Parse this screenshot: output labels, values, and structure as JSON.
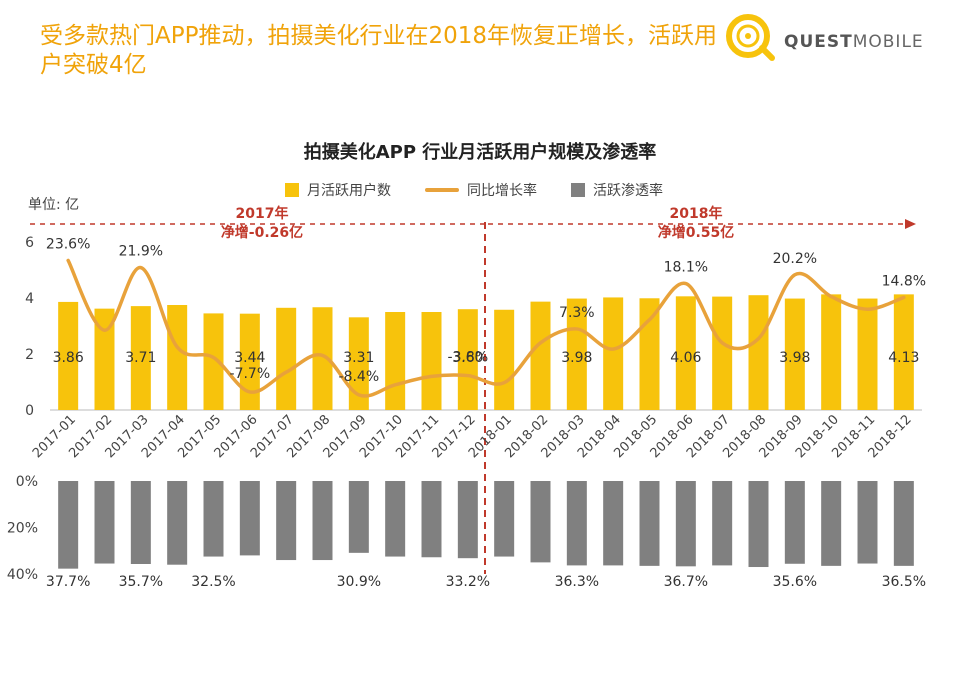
{
  "headline": "受多款热门APP推动，拍摄美化行业在2018年恢复正增长，活跃用户突破4亿",
  "brand": {
    "name_bold": "QUEST",
    "name_light": "MOBILE",
    "accent": "#f7c30c"
  },
  "unit_label": "单位: 亿",
  "notes": {
    "y2017": {
      "year": "2017年",
      "text": "净增-0.26亿"
    },
    "y2018": {
      "year": "2018年",
      "text": "净增0.55亿"
    }
  },
  "colors": {
    "bar": "#f7c30c",
    "line": "#e8a23b",
    "pen": "#808080",
    "note": "#c0392b"
  },
  "chart_data": {
    "type": "bar",
    "title": "拍摄美化APP 行业月活跃用户规模及渗透率",
    "legend": [
      "月活跃用户数",
      "同比增长率",
      "活跃渗透率"
    ],
    "categories": [
      "2017-01",
      "2017-02",
      "2017-03",
      "2017-04",
      "2017-05",
      "2017-06",
      "2017-07",
      "2017-08",
      "2017-09",
      "2017-10",
      "2017-11",
      "2017-12",
      "2018-01",
      "2018-02",
      "2018-03",
      "2018-04",
      "2018-05",
      "2018-06",
      "2018-07",
      "2018-08",
      "2018-09",
      "2018-10",
      "2018-11",
      "2018-12"
    ],
    "y_ticks": [
      "0",
      "2",
      "4",
      "6"
    ],
    "ylim": [
      0,
      6
    ],
    "mau": [
      3.86,
      3.62,
      3.71,
      3.75,
      3.45,
      3.44,
      3.65,
      3.67,
      3.31,
      3.5,
      3.5,
      3.6,
      3.58,
      3.87,
      3.98,
      4.02,
      3.99,
      4.06,
      4.05,
      4.1,
      3.98,
      4.13,
      3.98,
      4.13
    ],
    "mau_labels": {
      "0": "3.86",
      "2": "3.71",
      "5": "3.44",
      "8": "3.31",
      "11": "3.60",
      "14": "3.98",
      "17": "4.06",
      "20": "3.98",
      "23": "4.13"
    },
    "growth": [
      23.6,
      7.0,
      21.9,
      3.0,
      0.5,
      -7.7,
      -3.0,
      1.0,
      -8.4,
      -6.0,
      -4.0,
      -3.8,
      -5.5,
      4.0,
      7.3,
      2.5,
      9.5,
      18.1,
      4.0,
      5.0,
      20.2,
      15.0,
      12.0,
      14.8
    ],
    "growth_ylim": [
      -12,
      28
    ],
    "growth_labels": {
      "0": "23.6%",
      "2": "21.9%",
      "5": "-7.7%",
      "8": "-8.4%",
      "11": "-3.8%",
      "14": "7.3%",
      "17": "18.1%",
      "20": "20.2%",
      "23": "14.8%"
    },
    "penetration": [
      37.7,
      35.5,
      35.7,
      36.0,
      32.5,
      32.0,
      34.0,
      34.0,
      30.9,
      32.5,
      32.8,
      33.2,
      32.5,
      35.0,
      36.3,
      36.3,
      36.5,
      36.7,
      36.3,
      37.0,
      35.6,
      36.5,
      35.5,
      36.5
    ],
    "penetration_labels": {
      "0": "37.7%",
      "2": "35.7%",
      "4": "32.5%",
      "8": "30.9%",
      "11": "33.2%",
      "14": "36.3%",
      "17": "36.7%",
      "20": "35.6%",
      "23": "36.5%"
    },
    "penetration_ticks": [
      "0%",
      "20%",
      "40%"
    ],
    "penetration_ylim": [
      0,
      40
    ]
  }
}
